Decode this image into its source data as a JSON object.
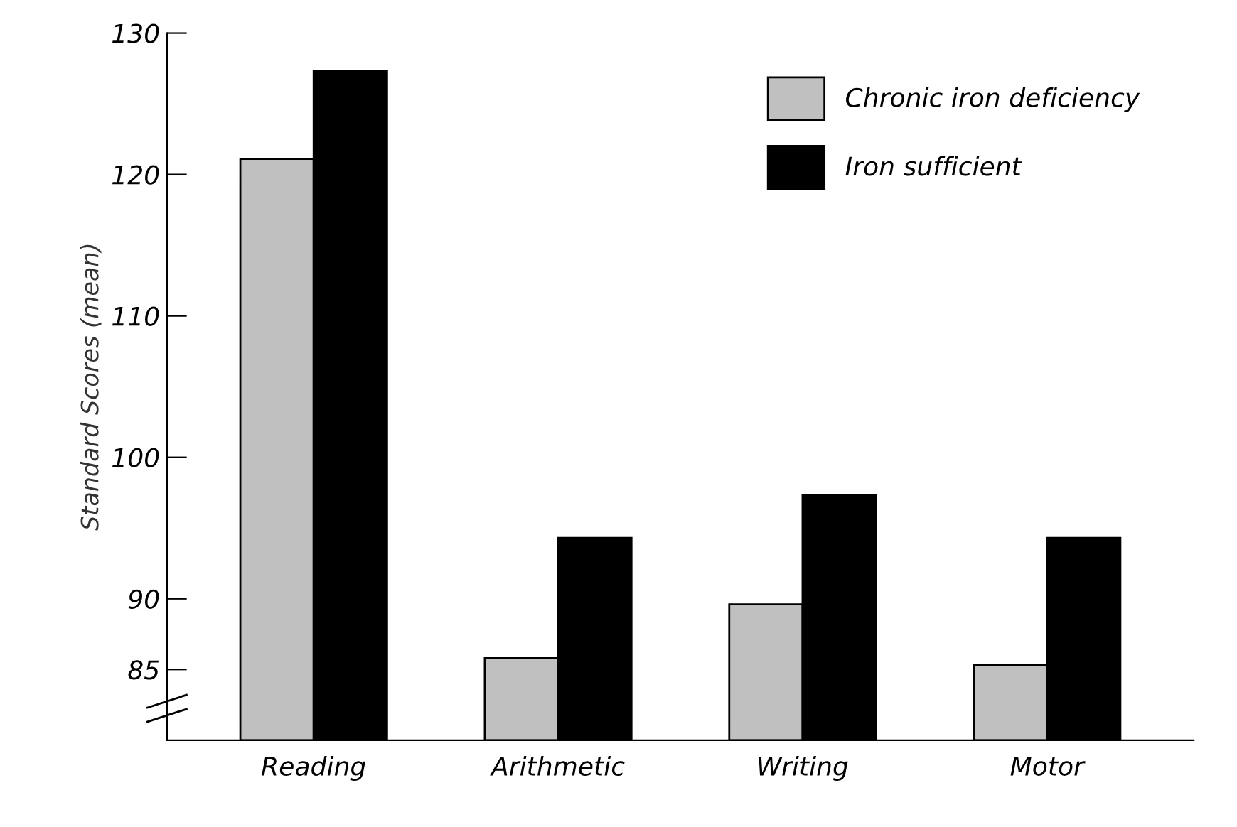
{
  "chart_data": {
    "type": "bar",
    "ylabel": "Standard Scores (mean)",
    "categories": [
      "Reading",
      "Arithmetic",
      "Writing",
      "Motor"
    ],
    "series": [
      {
        "name": "Chronic iron deficiency",
        "color": "#c0c0c0",
        "values": [
          121.1,
          85.8,
          89.6,
          85.3
        ]
      },
      {
        "name": "Iron sufficient",
        "color": "#000000",
        "values": [
          127.3,
          94.3,
          97.3,
          94.3
        ]
      }
    ],
    "ylim": [
      80,
      130
    ],
    "yticks": [
      85,
      90,
      100,
      110,
      120,
      130
    ],
    "grid": false,
    "legend": "top right"
  }
}
